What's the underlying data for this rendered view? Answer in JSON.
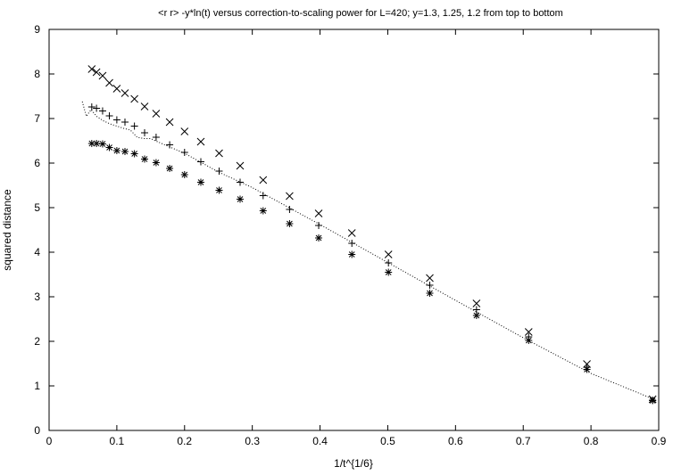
{
  "chart_data": {
    "type": "scatter",
    "title": "<r r> -y*ln(t) versus correction-to-scaling power for L=420; y=1.3, 1.25, 1.2 from top to bottom",
    "xlabel": "1/t^{1/6}",
    "ylabel": "squared distance",
    "xlim": [
      0,
      0.9
    ],
    "ylim": [
      0,
      9
    ],
    "xticks": [
      0,
      0.1,
      0.2,
      0.3,
      0.4,
      0.5,
      0.6,
      0.7,
      0.8,
      0.9
    ],
    "yticks": [
      0,
      1,
      2,
      3,
      4,
      5,
      6,
      7,
      8,
      9
    ],
    "grid": false,
    "series": [
      {
        "marker": "x",
        "x": [
          0.063,
          0.07,
          0.079,
          0.089,
          0.1,
          0.112,
          0.126,
          0.141,
          0.158,
          0.178,
          0.2,
          0.224,
          0.251,
          0.282,
          0.316,
          0.355,
          0.398,
          0.447,
          0.501,
          0.562,
          0.631,
          0.708,
          0.794,
          0.891
        ],
        "y": [
          8.11,
          8.04,
          7.96,
          7.8,
          7.67,
          7.57,
          7.44,
          7.27,
          7.11,
          6.92,
          6.71,
          6.48,
          6.22,
          5.94,
          5.62,
          5.26,
          4.87,
          4.43,
          3.95,
          3.42,
          2.85,
          2.21,
          1.49,
          0.7
        ]
      },
      {
        "marker": "+",
        "x": [
          0.063,
          0.07,
          0.079,
          0.089,
          0.1,
          0.112,
          0.126,
          0.141,
          0.158,
          0.178,
          0.2,
          0.224,
          0.251,
          0.282,
          0.316,
          0.355,
          0.398,
          0.447,
          0.501,
          0.562,
          0.631,
          0.708,
          0.794,
          0.891
        ],
        "y": [
          7.26,
          7.23,
          7.17,
          7.06,
          6.97,
          6.92,
          6.83,
          6.68,
          6.58,
          6.41,
          6.24,
          6.03,
          5.82,
          5.57,
          5.27,
          4.96,
          4.6,
          4.2,
          3.76,
          3.26,
          2.71,
          2.1,
          1.42,
          0.68
        ]
      },
      {
        "marker": "*",
        "x": [
          0.063,
          0.07,
          0.079,
          0.089,
          0.1,
          0.112,
          0.126,
          0.141,
          0.158,
          0.178,
          0.2,
          0.224,
          0.251,
          0.282,
          0.316,
          0.355,
          0.398,
          0.447,
          0.501,
          0.562,
          0.631,
          0.708,
          0.794,
          0.891
        ],
        "y": [
          6.44,
          6.44,
          6.43,
          6.35,
          6.28,
          6.26,
          6.21,
          6.09,
          6.01,
          5.88,
          5.74,
          5.57,
          5.39,
          5.19,
          4.93,
          4.64,
          4.32,
          3.95,
          3.55,
          3.08,
          2.58,
          2.02,
          1.37,
          0.67
        ]
      },
      {
        "style": "dotted-line",
        "x": [
          0.049,
          0.055,
          0.062,
          0.07,
          0.08,
          0.09,
          0.1,
          0.11,
          0.12,
          0.13,
          0.14,
          0.15,
          0.16,
          0.18,
          0.2,
          0.25,
          0.3,
          0.4,
          0.5,
          0.6,
          0.7,
          0.8,
          0.891
        ],
        "y": [
          7.38,
          7.05,
          7.2,
          7.05,
          6.95,
          6.88,
          6.83,
          6.78,
          6.74,
          6.58,
          6.55,
          6.55,
          6.48,
          6.35,
          6.22,
          5.8,
          5.45,
          4.62,
          3.77,
          2.92,
          2.08,
          1.28,
          0.71
        ]
      }
    ]
  }
}
